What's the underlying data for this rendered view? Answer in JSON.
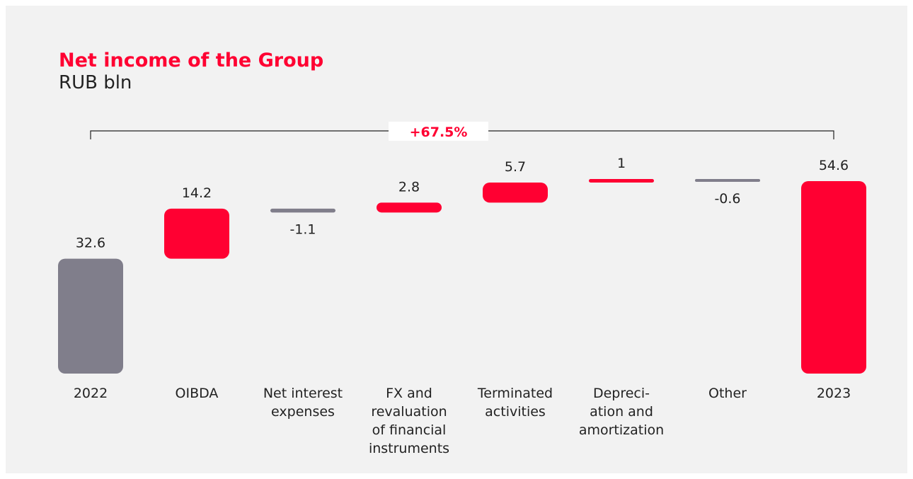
{
  "chart_data": {
    "type": "waterfall",
    "title": "Net income of the Group",
    "subtitle": "RUB bln",
    "annotation": "+67.5%",
    "categories": [
      "2022",
      "OIBDA",
      "Net interest\nexpenses",
      "FX and\nrevaluation\nof financial\ninstruments",
      "Terminated\nactivities",
      "Depreci-\nation and\namortization",
      "Other",
      "2023"
    ],
    "values": [
      32.6,
      14.2,
      -1.1,
      2.8,
      5.7,
      1.0,
      -0.6,
      54.6
    ],
    "colors": [
      "#807e8b",
      "#ff0032",
      "#807e8b",
      "#ff0032",
      "#ff0032",
      "#ff0032",
      "#807e8b",
      "#ff0032"
    ]
  }
}
